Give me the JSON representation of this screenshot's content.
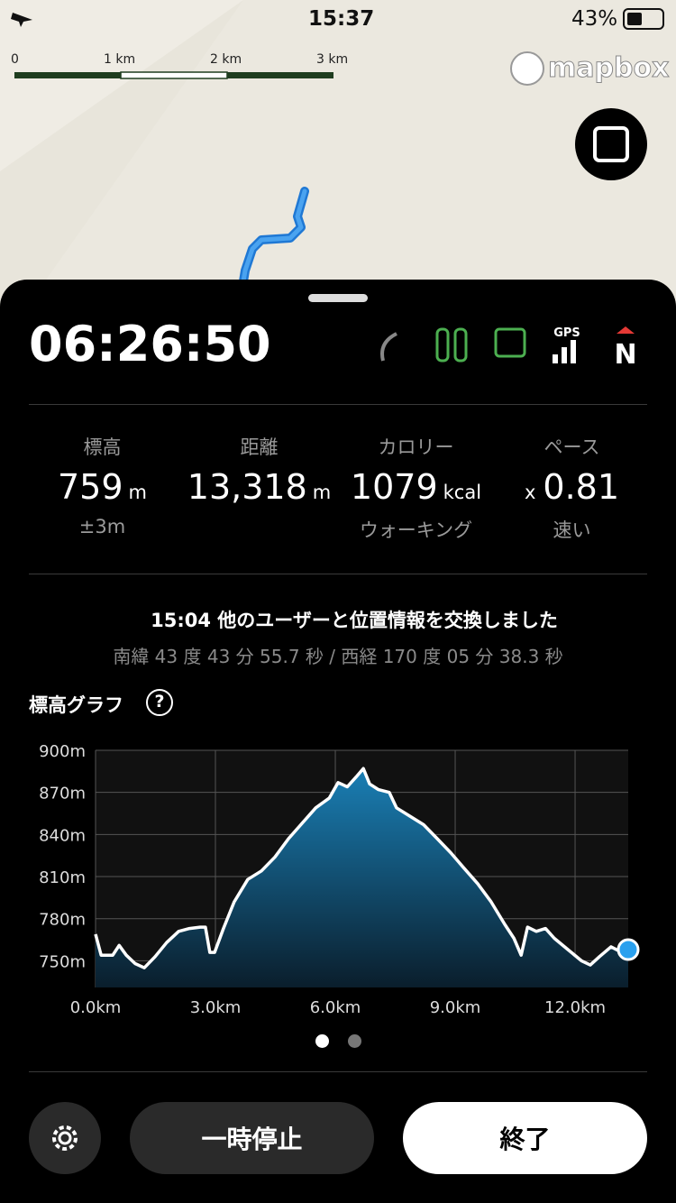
{
  "status_bar": {
    "time": "15:37",
    "battery": "43%"
  },
  "map": {
    "scale_labels": [
      "0",
      "1 km",
      "2 km",
      "3 km"
    ],
    "logo": "mapbox"
  },
  "timer": "06:26:50",
  "indicators": {
    "gps": "GPS",
    "north": "N"
  },
  "stats": [
    {
      "label": "標高",
      "value": "759",
      "unit": "m",
      "sub": "±3m"
    },
    {
      "label": "距離",
      "value": "13,318",
      "unit": "m"
    },
    {
      "label": "カロリー",
      "value": "1079",
      "unit": "kcal",
      "sub": "ウォーキング"
    },
    {
      "label": "ペース",
      "prefix": "x",
      "value": "0.81",
      "sub": "速い"
    }
  ],
  "exchange": {
    "time": "15:04",
    "text": "他のユーザーと位置情報を交換しました",
    "coords": "南緯 43 度 43 分 55.7 秒 / 西経 170 度 05 分 38.3 秒"
  },
  "graph_title": "標高グラフ",
  "help": "?",
  "chart_data": {
    "type": "area",
    "color": "#ffffff",
    "fill": "#1a7fb5",
    "marker_color": "#2aa0ee",
    "grid": true,
    "x": [
      0,
      0.14,
      0.43,
      0.59,
      0.77,
      0.99,
      1.22,
      1.49,
      1.78,
      2.08,
      2.35,
      2.62,
      2.75,
      2.86,
      2.98,
      3.2,
      3.47,
      3.81,
      4.15,
      4.49,
      4.83,
      5.17,
      5.51,
      5.85,
      6.07,
      6.3,
      6.52,
      6.7,
      6.86,
      7.08,
      7.35,
      7.53,
      7.87,
      8.21,
      8.55,
      8.89,
      9.22,
      9.56,
      9.9,
      10.24,
      10.47,
      10.65,
      10.81,
      11.03,
      11.26,
      11.48,
      11.82,
      12.16,
      12.38,
      12.61,
      12.9,
      13.17,
      13.33
    ],
    "values": [
      769,
      754,
      754,
      761,
      754,
      748,
      745,
      753,
      763,
      771,
      773,
      774,
      774,
      756,
      756,
      773,
      792,
      808,
      814,
      824,
      837,
      848,
      859,
      866,
      877,
      874,
      881,
      887,
      876,
      872,
      870,
      859,
      853,
      847,
      837,
      827,
      816,
      805,
      792,
      776,
      766,
      754,
      774,
      771,
      773,
      766,
      758,
      750,
      747,
      753,
      760,
      756,
      758
    ],
    "xlim": [
      0,
      13.33
    ],
    "ylim": [
      731,
      900
    ],
    "xticks": [
      {
        "value": 0,
        "label": "0.0km"
      },
      {
        "value": 3,
        "label": "3.0km"
      },
      {
        "value": 6,
        "label": "6.0km"
      },
      {
        "value": 9,
        "label": "9.0km"
      },
      {
        "value": 12,
        "label": "12.0km"
      }
    ],
    "yticks": [
      {
        "value": 750,
        "label": "750m"
      },
      {
        "value": 780,
        "label": "780m"
      },
      {
        "value": 810,
        "label": "810m"
      },
      {
        "value": 840,
        "label": "840m"
      },
      {
        "value": 870,
        "label": "870m"
      },
      {
        "value": 900,
        "label": "900m"
      }
    ]
  },
  "buttons": {
    "pause": "一時停止",
    "finish": "終了"
  }
}
